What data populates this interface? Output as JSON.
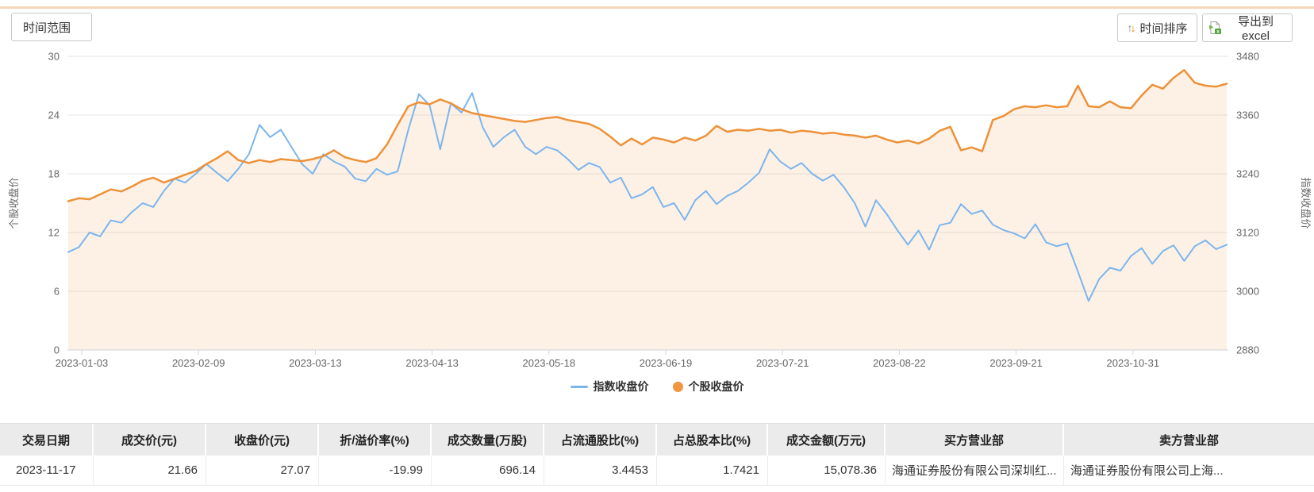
{
  "toolbar": {
    "time_range_label": "时间范围",
    "sort_label": "时间排序",
    "sort_icon": "↑↓",
    "export_label": "导出到excel"
  },
  "chart_data": {
    "type": "line",
    "title": "",
    "x_tick_labels": [
      "2023-01-03",
      "2023-02-09",
      "2023-03-13",
      "2023-04-13",
      "2023-05-18",
      "2023-06-19",
      "2023-07-21",
      "2023-08-22",
      "2023-09-21",
      "2023-10-31"
    ],
    "left_axis": {
      "label": "个股收盘价",
      "ticks": [
        0,
        6,
        12,
        18,
        24,
        30
      ],
      "range": [
        0,
        30
      ]
    },
    "right_axis": {
      "label": "指数收盘价",
      "ticks": [
        2880,
        3000,
        3120,
        3240,
        3360,
        3480
      ],
      "range": [
        2880,
        3480
      ]
    },
    "grid": true,
    "legend_position": "bottom",
    "legend": [
      {
        "name": "指数收盘价",
        "color": "#7cb5ec",
        "marker": "line"
      },
      {
        "name": "个股收盘价",
        "color": "#f1953f",
        "marker": "circle"
      }
    ],
    "series": [
      {
        "name": "指数收盘价",
        "axis": "right",
        "color": "#7cb5ec",
        "width": 2,
        "values": [
          3080,
          3090,
          3120,
          3112,
          3145,
          3140,
          3162,
          3180,
          3172,
          3205,
          3230,
          3222,
          3240,
          3260,
          3242,
          3225,
          3250,
          3280,
          3340,
          3315,
          3330,
          3295,
          3260,
          3240,
          3280,
          3265,
          3255,
          3230,
          3225,
          3250,
          3238,
          3245,
          3330,
          3403,
          3380,
          3290,
          3384,
          3365,
          3405,
          3335,
          3295,
          3315,
          3330,
          3295,
          3280,
          3295,
          3288,
          3270,
          3248,
          3262,
          3254,
          3222,
          3232,
          3190,
          3198,
          3213,
          3172,
          3180,
          3146,
          3186,
          3205,
          3178,
          3195,
          3205,
          3222,
          3242,
          3290,
          3265,
          3250,
          3262,
          3240,
          3226,
          3238,
          3212,
          3180,
          3132,
          3186,
          3158,
          3125,
          3095,
          3124,
          3085,
          3135,
          3140,
          3178,
          3158,
          3165,
          3136,
          3125,
          3118,
          3108,
          3137,
          3100,
          3092,
          3098,
          3040,
          2980,
          3025,
          3048,
          3042,
          3072,
          3088,
          3056,
          3082,
          3094,
          3062,
          3092,
          3104,
          3086,
          3095
        ]
      },
      {
        "name": "个股收盘价",
        "axis": "left",
        "color": "#ee9138",
        "width": 2.5,
        "fill": "rgba(238,145,59,0.13)",
        "values": [
          15.2,
          15.5,
          15.4,
          15.9,
          16.4,
          16.2,
          16.7,
          17.3,
          17.6,
          17.1,
          17.5,
          17.9,
          18.3,
          19.0,
          19.6,
          20.3,
          19.4,
          19.1,
          19.4,
          19.2,
          19.5,
          19.4,
          19.3,
          19.5,
          19.8,
          20.4,
          19.7,
          19.4,
          19.2,
          19.6,
          21.0,
          23.0,
          24.9,
          25.3,
          25.1,
          25.6,
          25.2,
          24.6,
          24.2,
          24.0,
          23.8,
          23.6,
          23.4,
          23.3,
          23.5,
          23.7,
          23.8,
          23.5,
          23.3,
          23.1,
          22.6,
          21.8,
          20.9,
          21.6,
          21.0,
          21.7,
          21.5,
          21.2,
          21.7,
          21.4,
          21.9,
          22.9,
          22.3,
          22.5,
          22.4,
          22.6,
          22.4,
          22.5,
          22.2,
          22.4,
          22.3,
          22.1,
          22.2,
          22.0,
          21.9,
          21.7,
          21.9,
          21.5,
          21.2,
          21.4,
          21.1,
          21.6,
          22.4,
          22.8,
          20.4,
          20.7,
          20.3,
          23.5,
          23.9,
          24.6,
          24.9,
          24.8,
          25.0,
          24.8,
          24.9,
          27.0,
          24.9,
          24.8,
          25.4,
          24.8,
          24.7,
          26.0,
          27.1,
          26.7,
          27.8,
          28.6,
          27.3,
          27.0,
          26.9,
          27.2
        ]
      }
    ]
  },
  "table": {
    "headers": [
      "交易日期",
      "成交价(元)",
      "收盘价(元)",
      "折/溢价率(%)",
      "成交数量(万股)",
      "占流通股比(%)",
      "占总股本比(%)",
      "成交金额(万元)",
      "买方营业部",
      "卖方营业部"
    ],
    "rows": [
      [
        "2023-11-17",
        "21.66",
        "27.07",
        "-19.99",
        "696.14",
        "3.4453",
        "1.7421",
        "15,078.36",
        "海通证券股份有限公司深圳红...",
        "海通证券股份有限公司上海..."
      ]
    ]
  },
  "colors": {
    "accent_line": "#f5d7b8",
    "blue_series": "#7cb5ec",
    "orange_series": "#ee9138",
    "grid_line": "#e6e6e6",
    "axis_line": "#ccd6eb",
    "tick_text": "#666666",
    "header_bg": "#ebebeb"
  }
}
